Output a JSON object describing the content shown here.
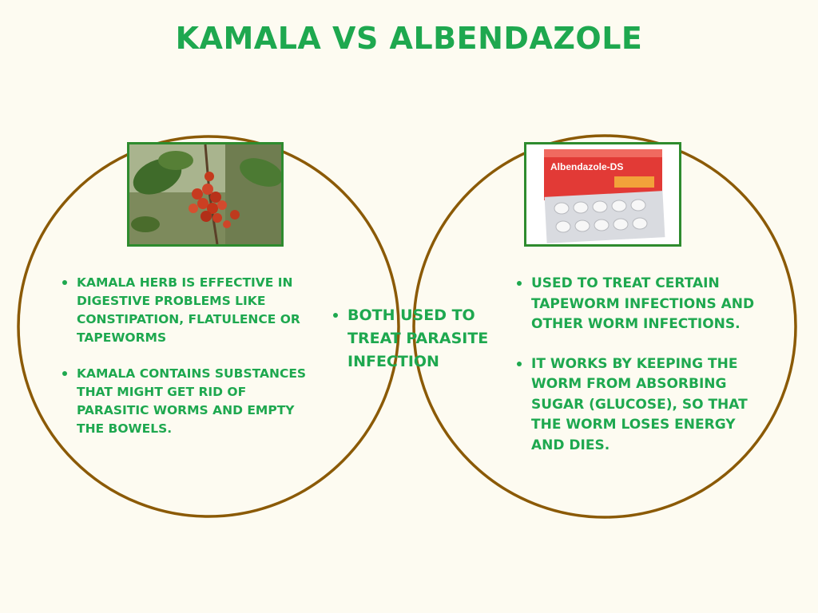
{
  "title": "KAMALA VS ALBENDAZOLE",
  "colors": {
    "title_green": "#1ea84f",
    "text_green": "#1ea84f",
    "center_text": "#2f7a3e",
    "circle_stroke": "#8b5a06",
    "frame_green": "#2e8b2e",
    "background": "#fdfbf1"
  },
  "left": {
    "image": "kamala-fruit-photo",
    "bullets": [
      "KAMALA HERB IS EFFECTIVE IN DIGESTIVE PROBLEMS LIKE CONSTIPATION, FLATULENCE OR TAPEWORMS",
      "KAMALA CONTAINS SUBSTANCES THAT MIGHT GET RID OF PARASITIC WORMS AND EMPTY THE BOWELS."
    ]
  },
  "center": {
    "bullets": [
      "BOTH USED TO TREAT PARASITE INFECTION"
    ]
  },
  "right": {
    "image": "albendazole-pack-photo",
    "box_label": "Albendazole-DS",
    "bullets": [
      "USED TO TREAT CERTAIN TAPEWORM INFECTIONS AND OTHER WORM INFECTIONS.",
      "IT WORKS BY KEEPING THE WORM FROM ABSORBING SUGAR (GLUCOSE), SO THAT THE WORM LOSES ENERGY AND DIES."
    ]
  }
}
